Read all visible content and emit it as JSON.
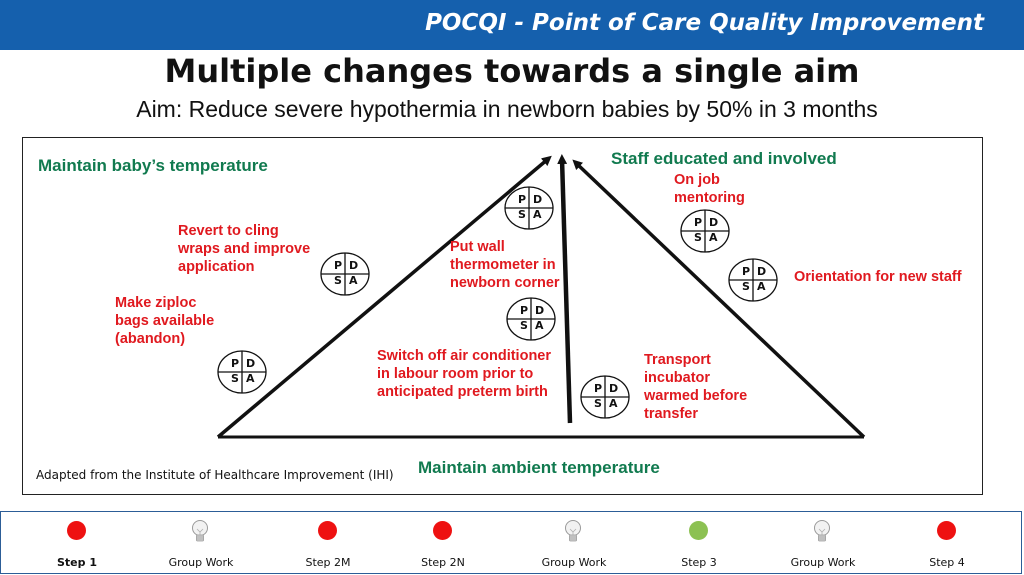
{
  "header": {
    "title": "POCQI - Point of Care Quality Improvement"
  },
  "slide": {
    "title": "Multiple changes towards a single aim",
    "aim": "Aim: Reduce severe hypothermia in newborn babies by 50% in 3 months"
  },
  "diagram": {
    "goals": {
      "left": "Maintain baby’s temperature",
      "right": "Staff educated and involved",
      "bottom": "Maintain ambient temperature"
    },
    "changes": {
      "ziploc": [
        "Make ziploc",
        "bags available",
        "(abandon)"
      ],
      "cling": [
        "Revert to cling",
        "wraps and improve",
        "application"
      ],
      "wall_thermo": [
        "Put wall",
        "thermometer in",
        "newborn corner"
      ],
      "ac_off": [
        "Switch off air conditioner",
        "in labour room prior to",
        "anticipated preterm birth"
      ],
      "transport": [
        "Transport",
        "incubator",
        "warmed before",
        "transfer"
      ],
      "mentoring": [
        "On job",
        "mentoring"
      ],
      "orientation": "Orientation for new staff"
    },
    "pdsa_letters": {
      "p": "P",
      "d": "D",
      "s": "S",
      "a": "A"
    },
    "source": "Adapted from the Institute of Healthcare Improvement (IHI)",
    "colors": {
      "goal": "#117a4f",
      "change": "#e0191f"
    }
  },
  "footer": {
    "steps": [
      {
        "label": "Step 1",
        "type": "dot",
        "color": "#ee1111",
        "current": true
      },
      {
        "label": "Group Work",
        "type": "bulb-icon"
      },
      {
        "label": "Step 2M",
        "type": "dot",
        "color": "#ee1111"
      },
      {
        "label": "Step 2N",
        "type": "dot",
        "color": "#ee1111"
      },
      {
        "label": "Group Work",
        "type": "bulb-icon"
      },
      {
        "label": "Step 3",
        "type": "dot",
        "color": "#8cc152"
      },
      {
        "label": "Group Work",
        "type": "bulb-icon"
      },
      {
        "label": "Step 4",
        "type": "dot",
        "color": "#ee1111"
      }
    ]
  }
}
